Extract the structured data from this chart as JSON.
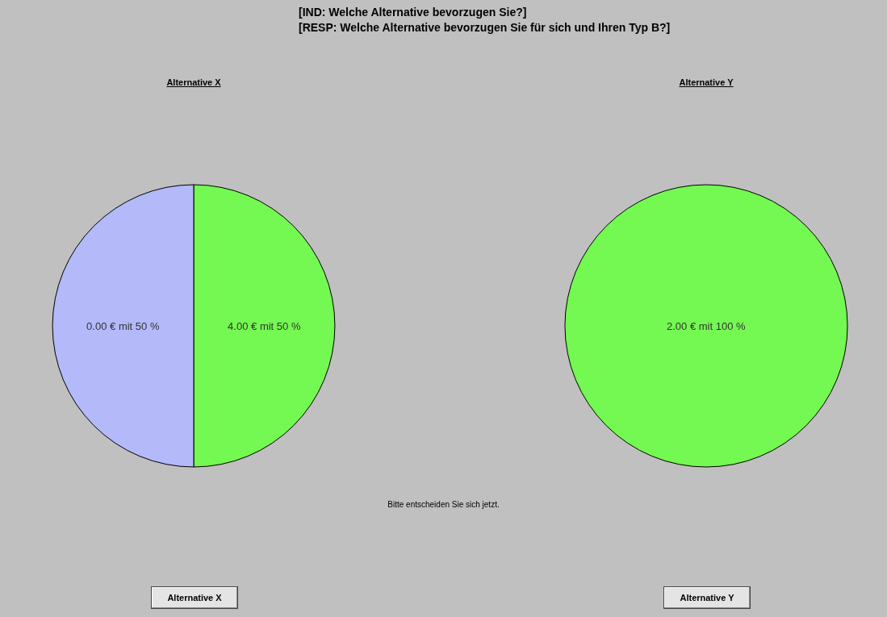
{
  "chart_data": [
    {
      "type": "pie",
      "title": "Alternative X",
      "categories": [
        "4.00 € mit 50 %",
        "0.00 € mit 50 %"
      ],
      "values": [
        50,
        50
      ],
      "colors": [
        "#74f852",
        "#b3b9f9"
      ],
      "legend": false
    },
    {
      "type": "pie",
      "title": "Alternative Y",
      "categories": [
        "2.00 € mit 100 %"
      ],
      "values": [
        100
      ],
      "colors": [
        "#74f852"
      ],
      "legend": false
    },
    {
      "type": "other",
      "title": "[IND:  Welche Alternative bevorzugen Sie?]",
      "subtitle": "[RESP: Welche Alternative bevorzugen Sie für sich und Ihren Typ B?]",
      "annotations": [
        "Bitte entscheiden Sie sich jetzt.",
        "Alternative X",
        "Alternative Y"
      ]
    }
  ]
}
